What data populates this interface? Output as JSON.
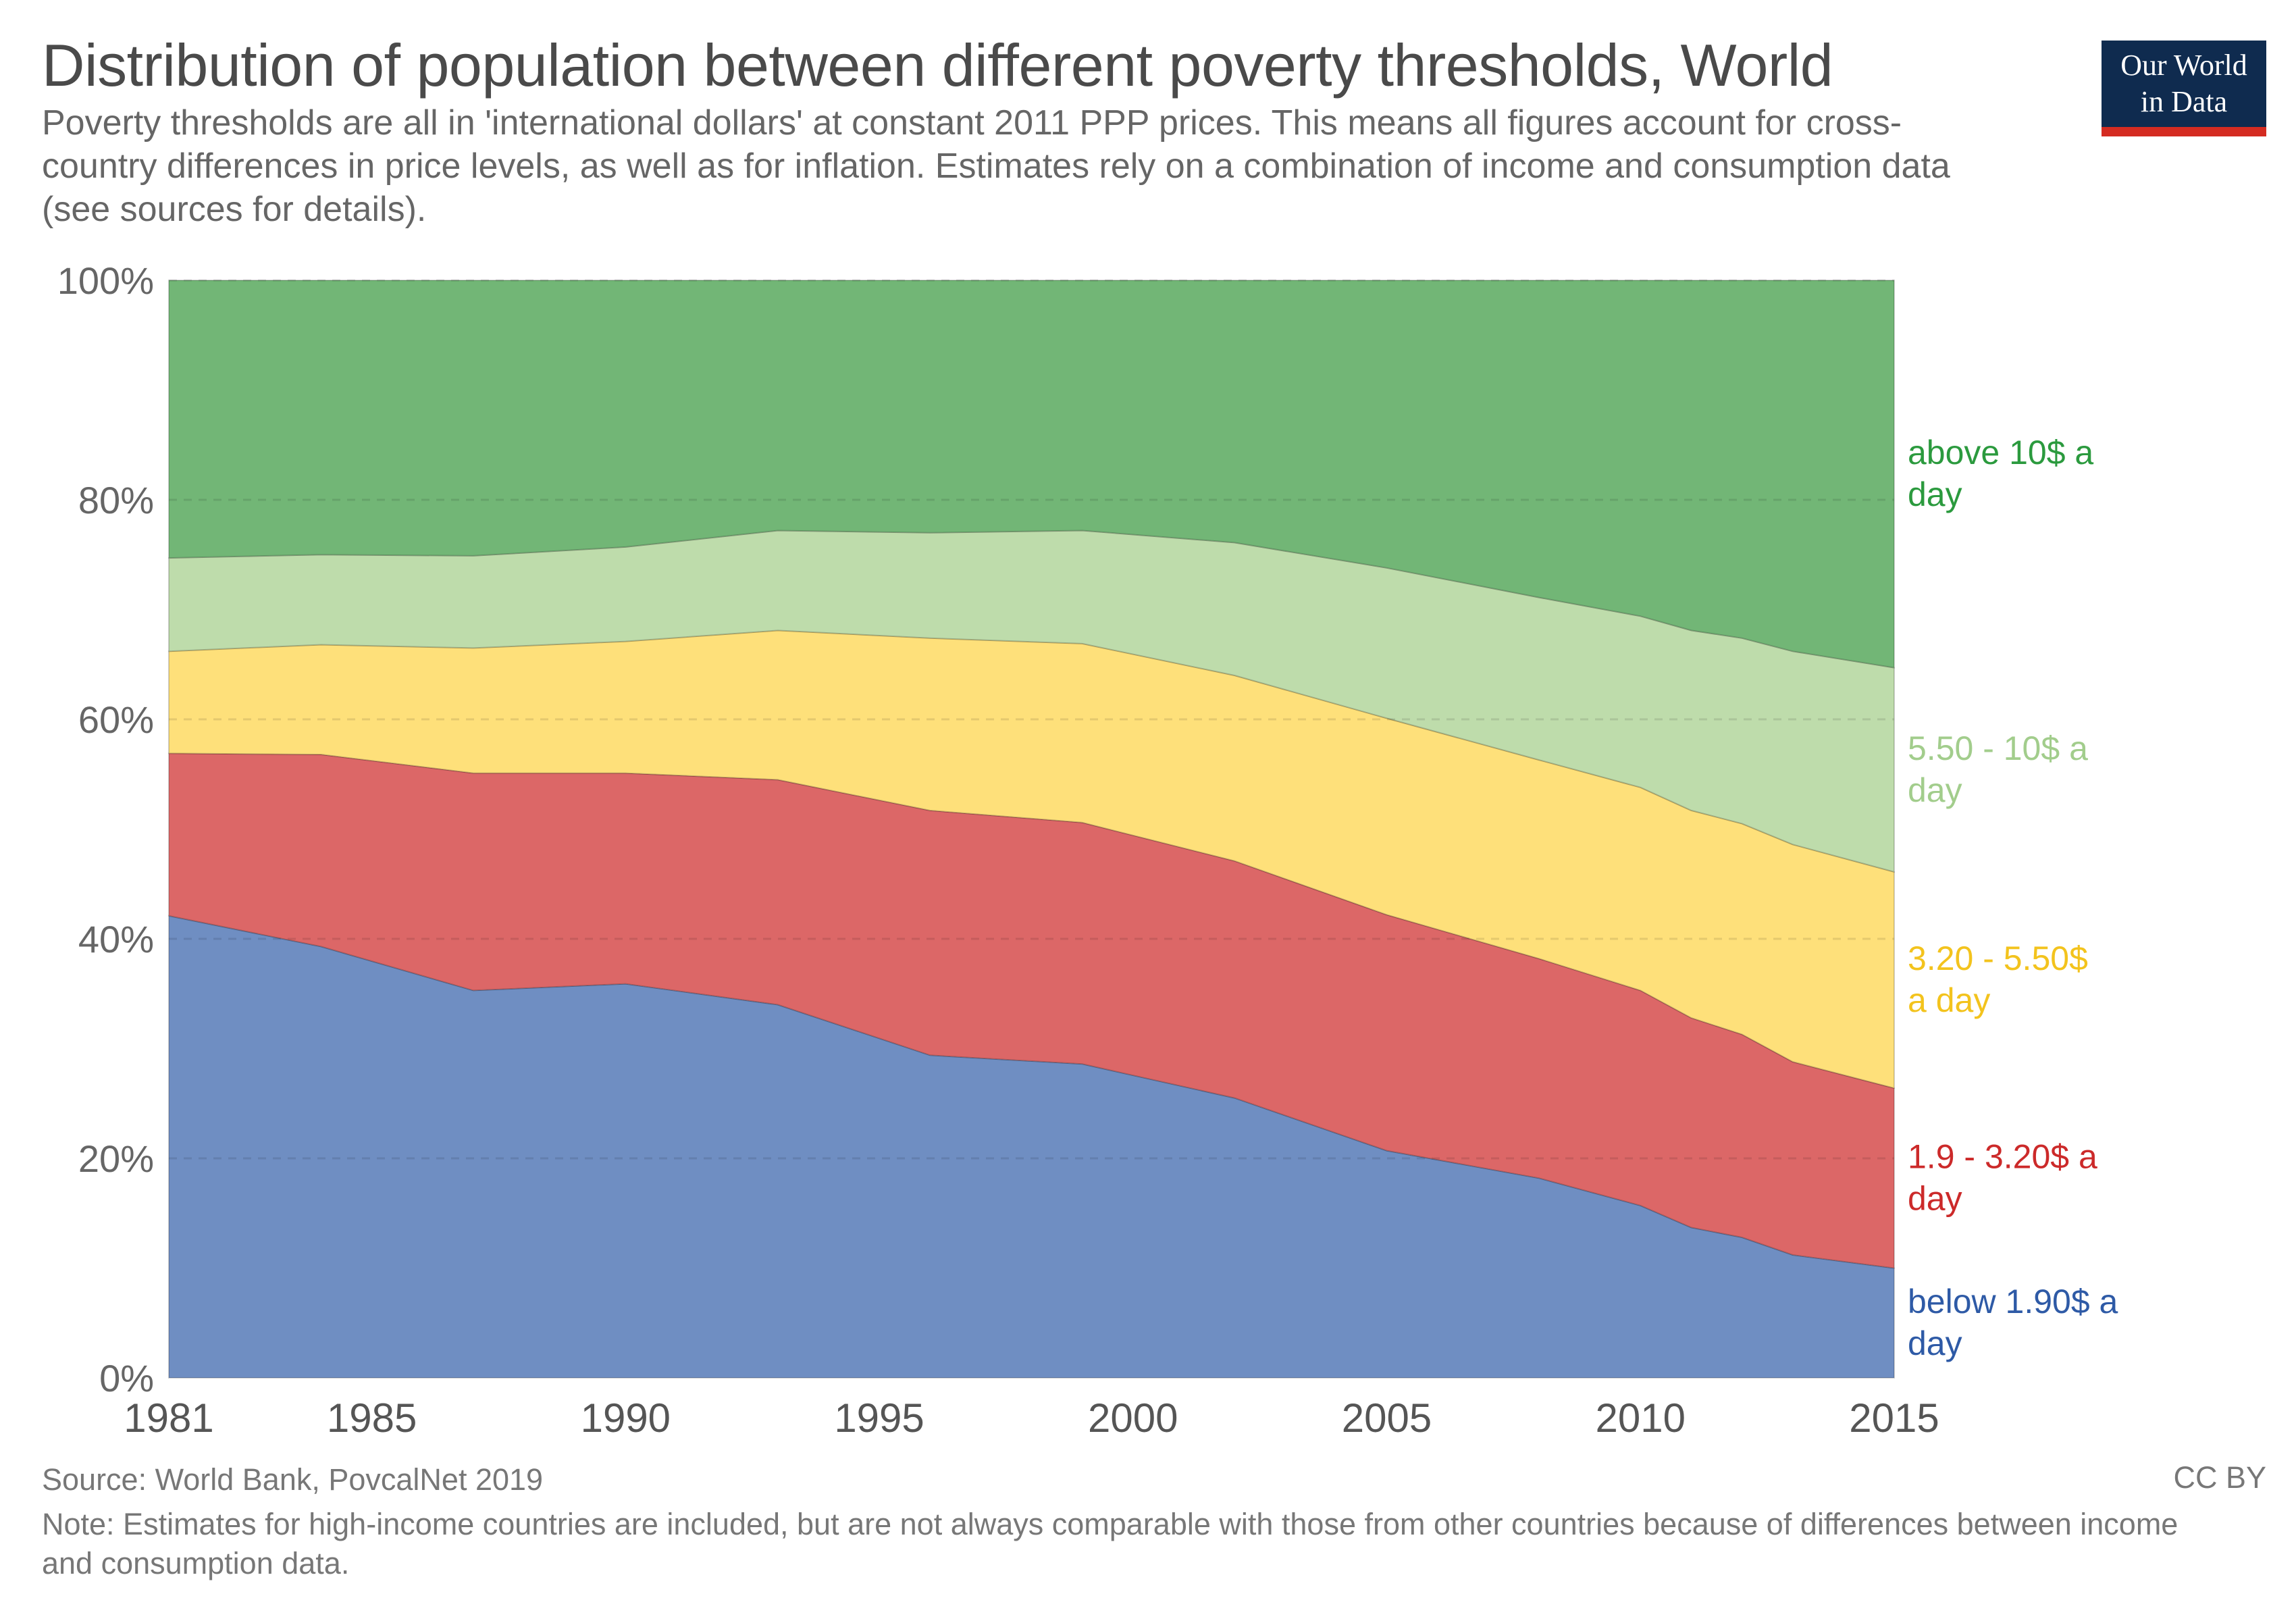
{
  "header": {
    "title": "Distribution of population between different poverty thresholds, World",
    "subtitle": "Poverty thresholds are all in 'international dollars' at constant 2011 PPP prices. This means all figures account for cross-country differences in price levels, as well as for inflation. Estimates rely on a combination of income and consumption data (see sources for details).",
    "logo_line1": "Our World",
    "logo_line2": "in Data"
  },
  "footer": {
    "source": "Source: World Bank, PovcalNet 2019",
    "note": "Note: Estimates for high-income countries are included, but are not always comparable with those from other countries because of differences between income and consumption data.",
    "license": "CC BY"
  },
  "chart_data": {
    "type": "area",
    "stacked": true,
    "x": [
      1981,
      1984,
      1987,
      1990,
      1993,
      1996,
      1999,
      2002,
      2005,
      2008,
      2010,
      2011,
      2012,
      2013,
      2015
    ],
    "xlim": [
      1981,
      2015
    ],
    "ylim": [
      0,
      100
    ],
    "x_ticks": [
      1981,
      1985,
      1990,
      1995,
      2000,
      2005,
      2010,
      2015
    ],
    "x_tick_labels": [
      "1981",
      "1985",
      "1990",
      "1995",
      "2000",
      "2005",
      "2010",
      "2015"
    ],
    "y_ticks": [
      0,
      20,
      40,
      60,
      80,
      100
    ],
    "y_tick_labels": [
      "0%",
      "20%",
      "40%",
      "60%",
      "80%",
      "100%"
    ],
    "grid": "horizontal dashed",
    "legend": "right, inline labels",
    "series": [
      {
        "name": "below 1.90$ a day",
        "color": "#6f8ec2",
        "label_color": "#2e5aa6",
        "values": [
          42.1,
          39.3,
          35.3,
          35.9,
          34.0,
          29.4,
          28.6,
          25.5,
          20.7,
          18.2,
          15.7,
          13.7,
          12.8,
          11.2,
          10.0
        ]
      },
      {
        "name": "1.9 - 3.20$ a day",
        "color": "#dc6767",
        "label_color": "#cc2a2a",
        "values": [
          14.8,
          17.5,
          19.8,
          19.2,
          20.5,
          22.3,
          22.0,
          21.6,
          21.5,
          20.0,
          19.6,
          19.1,
          18.5,
          17.6,
          16.4
        ]
      },
      {
        "name": "3.20 - 5.50$ a day",
        "color": "#fee07a",
        "label_color": "#f3c31d",
        "values": [
          9.3,
          10.0,
          11.4,
          12.0,
          13.6,
          15.7,
          16.3,
          16.9,
          17.9,
          18.1,
          18.5,
          18.9,
          19.2,
          19.8,
          19.7
        ]
      },
      {
        "name": "5.50 - 10$ a day",
        "color": "#bedcab",
        "label_color": "#a2cd8c",
        "values": [
          8.5,
          8.2,
          8.4,
          8.6,
          9.1,
          9.6,
          10.3,
          12.1,
          13.7,
          14.8,
          15.6,
          16.4,
          16.9,
          17.6,
          18.6
        ]
      },
      {
        "name": "above 10$ a day",
        "color": "#72b676",
        "label_color": "#2b9a3e",
        "values": [
          25.3,
          25.0,
          25.1,
          24.3,
          22.8,
          23.0,
          22.8,
          23.9,
          26.2,
          28.9,
          30.6,
          31.9,
          32.6,
          33.8,
          35.3
        ]
      }
    ]
  }
}
